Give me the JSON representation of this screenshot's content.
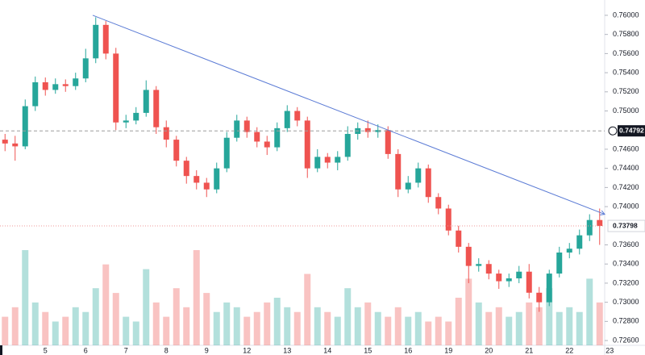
{
  "chart_data": {
    "type": "candlestick",
    "categories": [
      null,
      null,
      null,
      null,
      "5",
      null,
      null,
      null,
      "6",
      null,
      null,
      null,
      "7",
      null,
      null,
      null,
      "8",
      null,
      null,
      null,
      "9",
      null,
      null,
      null,
      "12",
      null,
      null,
      null,
      "13",
      null,
      null,
      null,
      "14",
      null,
      null,
      null,
      "15",
      null,
      null,
      null,
      "16",
      null,
      null,
      null,
      "19",
      null,
      null,
      null,
      "20",
      null,
      null,
      null,
      "21",
      null,
      null,
      null,
      "22",
      null,
      null,
      null,
      "23"
    ],
    "open": [
      0.747,
      0.7466,
      0.7463,
      0.7505,
      0.753,
      0.7522,
      0.7528,
      0.7526,
      0.7534,
      0.7555,
      0.759,
      0.756,
      0.7488,
      0.749,
      0.7498,
      0.7522,
      0.7483,
      0.747,
      0.7448,
      0.7432,
      0.7425,
      0.7418,
      0.744,
      0.7472,
      0.749,
      0.7478,
      0.7468,
      0.7462,
      0.7482,
      0.75,
      0.749,
      0.744,
      0.7452,
      0.7446,
      0.7452,
      0.7476,
      0.7482,
      0.7478,
      0.748,
      0.7455,
      0.7418,
      0.7425,
      0.744,
      0.741,
      0.7398,
      0.7375,
      0.7358,
      0.7338,
      0.734,
      0.733,
      0.7322,
      0.7325,
      0.7332,
      0.731,
      0.73,
      0.733,
      0.7352,
      0.7356,
      0.737,
      0.7386,
      null
    ],
    "high": [
      0.7476,
      0.7474,
      0.7512,
      0.7536,
      0.7535,
      0.7534,
      0.7533,
      0.754,
      0.7565,
      0.7598,
      0.7594,
      0.7566,
      0.7496,
      0.7504,
      0.7532,
      0.7526,
      0.749,
      0.7474,
      0.7452,
      0.7438,
      0.743,
      0.7446,
      0.7478,
      0.7496,
      0.7494,
      0.7483,
      0.7474,
      0.7488,
      0.7506,
      0.7504,
      0.7494,
      0.746,
      0.7456,
      0.7458,
      0.7484,
      0.7488,
      0.749,
      0.7486,
      0.7484,
      0.746,
      0.7432,
      0.7446,
      0.7444,
      0.7414,
      0.7402,
      0.738,
      0.7362,
      0.7346,
      0.7344,
      0.7334,
      0.733,
      0.7338,
      0.734,
      0.7316,
      0.7334,
      0.7358,
      0.7362,
      0.7376,
      0.7392,
      0.7398,
      null
    ],
    "low": [
      0.7458,
      0.7448,
      0.746,
      0.75,
      0.7516,
      0.7518,
      0.752,
      0.7522,
      0.753,
      0.755,
      0.7554,
      0.748,
      0.7482,
      0.7486,
      0.7494,
      0.7476,
      0.7462,
      0.7442,
      0.7424,
      0.7418,
      0.741,
      0.7414,
      0.7436,
      0.7468,
      0.7472,
      0.7462,
      0.7454,
      0.7458,
      0.7478,
      0.7484,
      0.743,
      0.7436,
      0.744,
      0.7438,
      0.7448,
      0.747,
      0.7472,
      0.7472,
      0.745,
      0.741,
      0.7414,
      0.742,
      0.7404,
      0.7392,
      0.737,
      0.7352,
      0.732,
      0.7332,
      0.7324,
      0.7314,
      0.7316,
      0.732,
      0.7304,
      0.729,
      0.7296,
      0.7326,
      0.7346,
      0.735,
      0.7364,
      0.736,
      null
    ],
    "close": [
      0.7466,
      0.7463,
      0.7505,
      0.753,
      0.7522,
      0.7528,
      0.7526,
      0.7534,
      0.7555,
      0.759,
      0.756,
      0.7488,
      0.749,
      0.7498,
      0.7522,
      0.7483,
      0.747,
      0.7448,
      0.7432,
      0.7425,
      0.7418,
      0.744,
      0.7472,
      0.749,
      0.7478,
      0.7468,
      0.7462,
      0.7482,
      0.75,
      0.749,
      0.744,
      0.7452,
      0.7446,
      0.7452,
      0.7476,
      0.7482,
      0.7478,
      0.748,
      0.7455,
      0.7418,
      0.7425,
      0.744,
      0.741,
      0.7398,
      0.7375,
      0.7358,
      0.7338,
      0.734,
      0.733,
      0.7322,
      0.7325,
      0.7332,
      0.731,
      0.73,
      0.733,
      0.7352,
      0.7356,
      0.737,
      0.7386,
      0.73798,
      null
    ],
    "volume": [
      30,
      40,
      100,
      45,
      35,
      25,
      30,
      40,
      35,
      60,
      85,
      55,
      30,
      25,
      80,
      45,
      30,
      60,
      40,
      100,
      55,
      35,
      45,
      40,
      30,
      35,
      45,
      50,
      40,
      35,
      75,
      40,
      35,
      30,
      60,
      40,
      45,
      35,
      30,
      40,
      30,
      35,
      25,
      30,
      25,
      50,
      70,
      45,
      35,
      40,
      30,
      35,
      45,
      40,
      60,
      35,
      40,
      35,
      70,
      45,
      null
    ],
    "volume_lim": [
      0,
      100
    ],
    "up_color": "#26a69a",
    "down_color": "#ef5350",
    "ylim": [
      0.7255,
      0.7616
    ],
    "yticks": [
      {
        "value": 0.76,
        "label": "0.76000"
      },
      {
        "value": 0.758,
        "label": "0.75800"
      },
      {
        "value": 0.756,
        "label": "0.75600"
      },
      {
        "value": 0.754,
        "label": "0.75400"
      },
      {
        "value": 0.752,
        "label": "0.75200"
      },
      {
        "value": 0.75,
        "label": "0.75000"
      },
      {
        "value": 0.746,
        "label": "0.74600"
      },
      {
        "value": 0.744,
        "label": "0.74400"
      },
      {
        "value": 0.742,
        "label": "0.74200"
      },
      {
        "value": 0.74,
        "label": "0.74000"
      },
      {
        "value": 0.736,
        "label": "0.73600"
      },
      {
        "value": 0.734,
        "label": "0.73400"
      },
      {
        "value": 0.732,
        "label": "0.73200"
      },
      {
        "value": 0.73,
        "label": "0.73000"
      },
      {
        "value": 0.728,
        "label": "0.72800"
      },
      {
        "value": 0.726,
        "label": "0.72600"
      }
    ],
    "price_lines": [
      {
        "value": 0.74792,
        "color": "#9e9e9e"
      },
      {
        "value": 0.73798,
        "color": "#ef9a9a"
      }
    ],
    "trendline": {
      "x": [
        8.7,
        59.5
      ],
      "y": [
        0.76,
        0.7392
      ],
      "color": "#5b7bd5"
    },
    "grid": false
  }
}
